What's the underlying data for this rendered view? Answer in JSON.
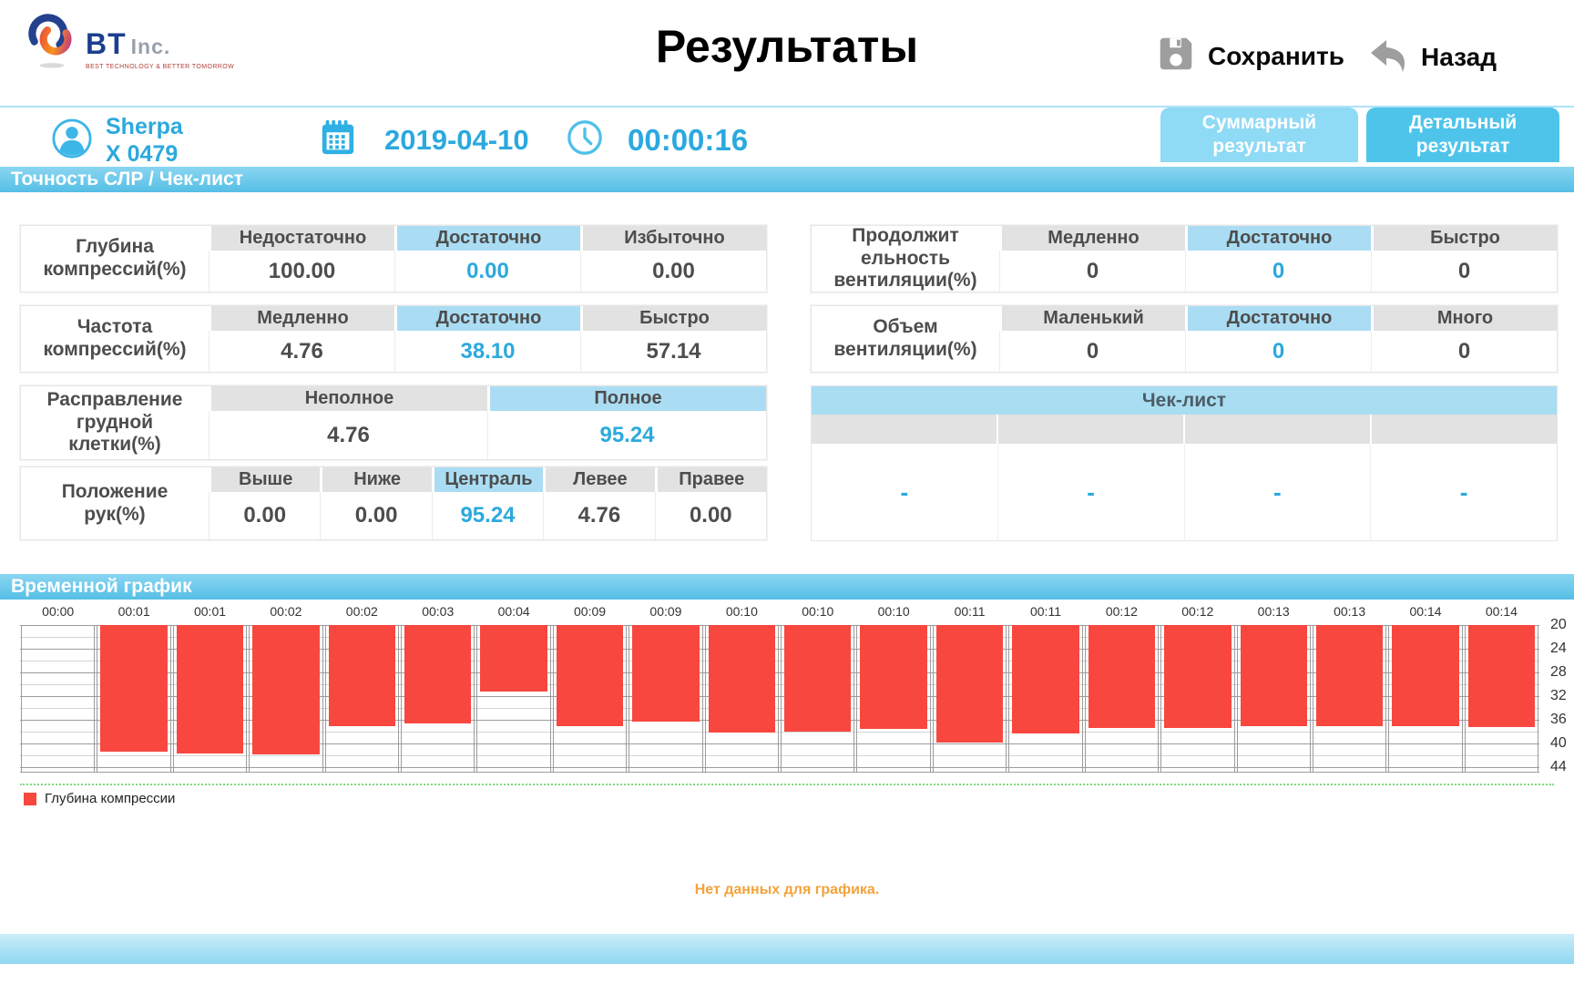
{
  "header": {
    "logo": {
      "bt": "BT",
      "inc": "Inc.",
      "tagline": "BEST TECHNOLOGY & BETTER TOMORROW"
    },
    "title": "Результаты",
    "save_label": "Сохранить",
    "back_label": "Назад"
  },
  "info_bar": {
    "device_name": "Sherpa\nX  0479",
    "date": "2019-04-10",
    "time": "00:00:16",
    "tabs": [
      {
        "label": "Суммарный результат",
        "active": false
      },
      {
        "label": "Детальный результат",
        "active": true
      }
    ]
  },
  "sections": {
    "accuracy_title": "Точность СЛР / Чек-лист",
    "chart_title": "Временной график"
  },
  "tables_left": [
    {
      "label": "Глубина\nкомпрессий(%)",
      "columns": [
        {
          "header": "Недостаточно",
          "value": "100.00",
          "highlight": false
        },
        {
          "header": "Достаточно",
          "value": "0.00",
          "highlight": true
        },
        {
          "header": "Избыточно",
          "value": "0.00",
          "highlight": false
        }
      ]
    },
    {
      "label": "Частота\nкомпрессий(%)",
      "columns": [
        {
          "header": "Медленно",
          "value": "4.76",
          "highlight": false
        },
        {
          "header": "Достаточно",
          "value": "38.10",
          "highlight": true
        },
        {
          "header": "Быстро",
          "value": "57.14",
          "highlight": false
        }
      ]
    },
    {
      "label": "Расправление\nгрудной\nклетки(%)",
      "columns": [
        {
          "header": "Неполное",
          "value": "4.76",
          "highlight": false
        },
        {
          "header": "Полное",
          "value": "95.24",
          "highlight": true
        }
      ]
    },
    {
      "label": "Положение\nрук(%)",
      "columns": [
        {
          "header": "Выше",
          "value": "0.00",
          "highlight": false
        },
        {
          "header": "Ниже",
          "value": "0.00",
          "highlight": false
        },
        {
          "header": "Централь",
          "value": "95.24",
          "highlight": true
        },
        {
          "header": "Левее",
          "value": "4.76",
          "highlight": false
        },
        {
          "header": "Правее",
          "value": "0.00",
          "highlight": false
        }
      ]
    }
  ],
  "tables_right": [
    {
      "label": "Продолжит\nельность\nвентиляции(%)",
      "columns": [
        {
          "header": "Медленно",
          "value": "0",
          "highlight": false
        },
        {
          "header": "Достаточно",
          "value": "0",
          "highlight": true
        },
        {
          "header": "Быстро",
          "value": "0",
          "highlight": false
        }
      ]
    },
    {
      "label": "Объем\nвентиляции(%)",
      "columns": [
        {
          "header": "Маленький",
          "value": "0",
          "highlight": false
        },
        {
          "header": "Достаточно",
          "value": "0",
          "highlight": true
        },
        {
          "header": "Много",
          "value": "0",
          "highlight": false
        }
      ]
    }
  ],
  "checklist": {
    "title": "Чек-лист",
    "cells": [
      "-",
      "-",
      "-",
      "-"
    ]
  },
  "chart_data": {
    "type": "bar",
    "title": "Временной график",
    "categories": [
      "00:00",
      "00:01",
      "00:01",
      "00:02",
      "00:02",
      "00:03",
      "00:04",
      "00:09",
      "00:09",
      "00:10",
      "00:10",
      "00:10",
      "00:11",
      "00:11",
      "00:12",
      "00:12",
      "00:13",
      "00:13",
      "00:14",
      "00:14"
    ],
    "series": [
      {
        "name": "Глубина компрессии",
        "values": [
          null,
          41.5,
          41.7,
          41.9,
          37.1,
          36.7,
          31.3,
          37.1,
          36.4,
          38.2,
          38.1,
          37.6,
          39.9,
          38.3,
          37.4,
          37.4,
          37.1,
          37.1,
          37.1,
          37.3
        ]
      }
    ],
    "xlabel": "",
    "ylabel": "",
    "y_ticks": [
      20,
      24,
      28,
      32,
      36,
      40,
      44
    ],
    "ylim_top": 20,
    "ylim_bottom": 45,
    "y_axis_side": "right",
    "bars_hang_from_top": true,
    "grid": true,
    "bar_color": "#f8473f",
    "legend": [
      "Глубина компрессии"
    ],
    "legend_position": "bottom-left"
  },
  "no_data_message": "Нет данных для графика.",
  "colors": {
    "accent_blue": "#2BA9DE",
    "highlight_cell_blue": "#AADDF3",
    "header_cell_gray": "#E2E2E2",
    "tab_active_blue": "#4FC4EB",
    "tab_inactive_blue": "#8FDAF5",
    "section_bar_blue": "#65C6E9",
    "bar_red": "#F8473F",
    "legend_line_green": "#7FD87F",
    "warning_orange": "#F2A33C",
    "logo_navy": "#1B3F8E",
    "icon_gray": "#9E9E9E"
  }
}
